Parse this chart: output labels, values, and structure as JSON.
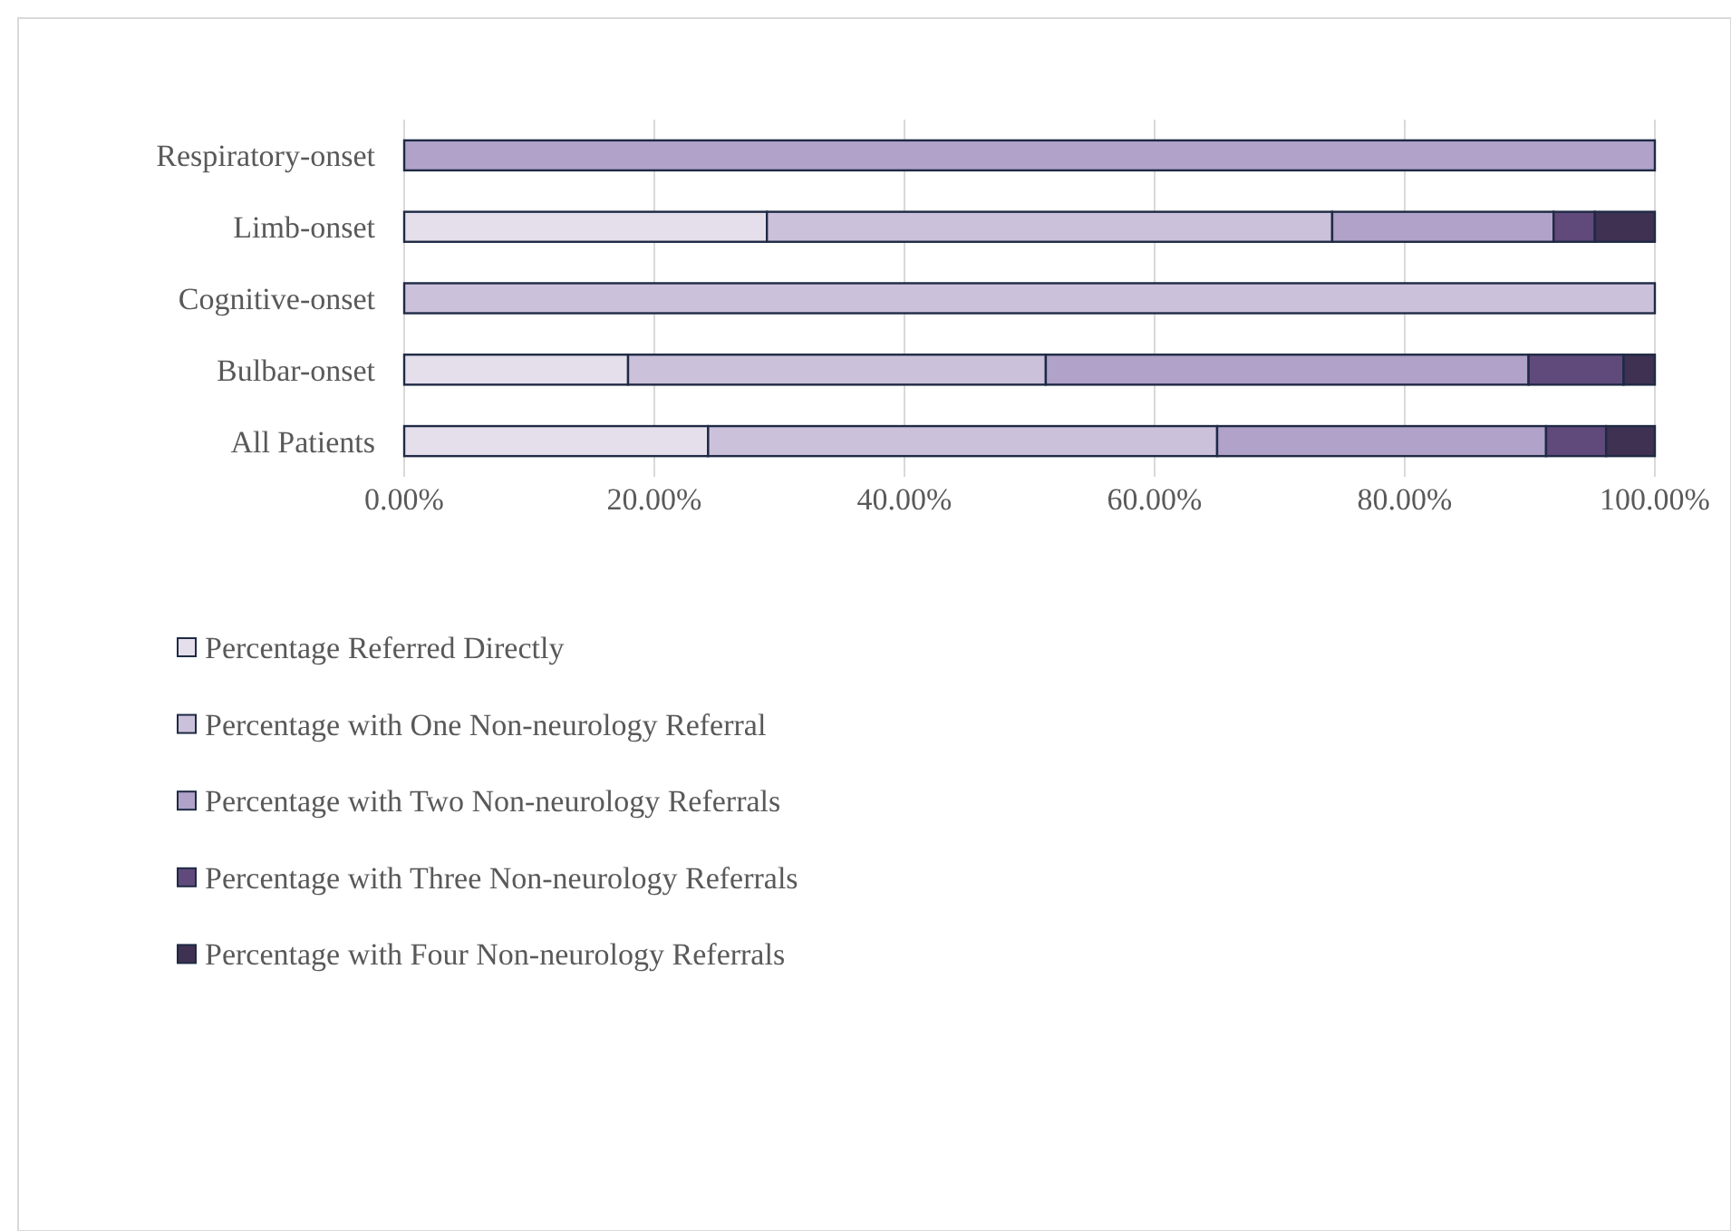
{
  "chart_data": {
    "type": "bar",
    "orientation": "horizontal",
    "stacked": true,
    "categories": [
      "Respiratory-onset",
      "Limb-onset",
      "Cognitive-onset",
      "Bulbar-onset",
      "All Patients"
    ],
    "series": [
      {
        "name": "Percentage Referred Directly",
        "color": "#e5dfec",
        "values": [
          0,
          29.0,
          0,
          17.9,
          24.3
        ]
      },
      {
        "name": "Percentage with One Non-neurology Referral",
        "color": "#cbc1db",
        "values": [
          0,
          45.2,
          100,
          33.4,
          40.7
        ]
      },
      {
        "name": "Percentage with Two Non-neurology Referrals",
        "color": "#b0a2c8",
        "values": [
          100,
          17.7,
          0,
          38.6,
          26.3
        ]
      },
      {
        "name": "Percentage with Three Non-neurology Referrals",
        "color": "#604a7b",
        "values": [
          0,
          3.3,
          0,
          7.6,
          4.8
        ]
      },
      {
        "name": "Percentage with Four Non-neurology Referrals",
        "color": "#3f3151",
        "values": [
          0,
          4.8,
          0,
          2.5,
          3.9
        ]
      }
    ],
    "xlim": [
      0,
      100
    ],
    "xticks": [
      {
        "value": 0,
        "label": "0.00%"
      },
      {
        "value": 20,
        "label": "20.00%"
      },
      {
        "value": 40,
        "label": "40.00%"
      },
      {
        "value": 60,
        "label": "60.00%"
      },
      {
        "value": 80,
        "label": "80.00%"
      },
      {
        "value": 100,
        "label": "100.00%"
      }
    ],
    "grid": "x",
    "legend": "bottom"
  }
}
